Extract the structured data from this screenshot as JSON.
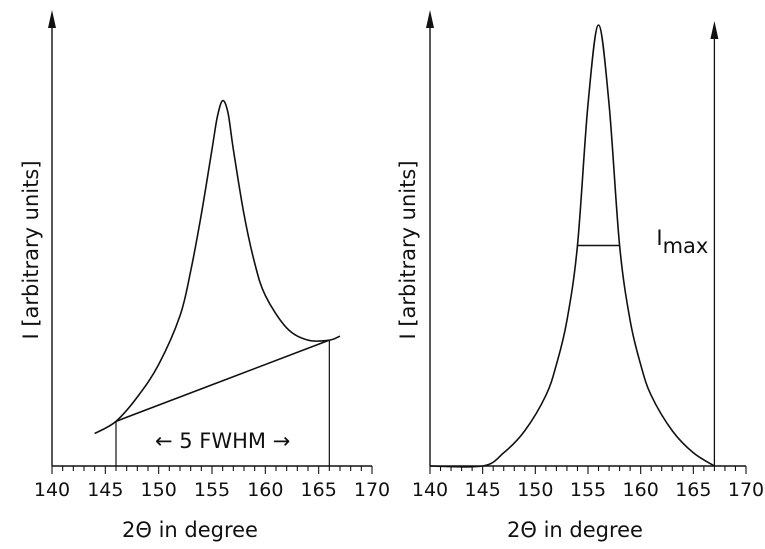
{
  "chart_data": [
    {
      "type": "line",
      "panel": "left",
      "xlabel": "2Θ  in degree",
      "ylabel": "I [arbitrary units]",
      "xlim": [
        140,
        170
      ],
      "xticks": [
        140,
        145,
        150,
        155,
        160,
        165,
        170
      ],
      "annotation": "← 5 FWHM →",
      "annotation_range": [
        146,
        166
      ],
      "series": [
        {
          "kind": "peak",
          "x": [
            144,
            146,
            148,
            150,
            152,
            153,
            154,
            155,
            155.5,
            156,
            156.5,
            157,
            158,
            159,
            160,
            162,
            164,
            166,
            167
          ],
          "y": [
            0.08,
            0.11,
            0.17,
            0.25,
            0.37,
            0.48,
            0.62,
            0.78,
            0.86,
            0.9,
            0.87,
            0.78,
            0.62,
            0.5,
            0.42,
            0.34,
            0.31,
            0.31,
            0.32
          ]
        },
        {
          "kind": "background",
          "x": [
            146,
            166
          ],
          "y": [
            0.11,
            0.31
          ]
        }
      ]
    },
    {
      "type": "line",
      "panel": "right",
      "xlabel": "2Θ in degree",
      "ylabel": "I [arbitrary units]",
      "xlim": [
        140,
        170
      ],
      "xticks": [
        140,
        145,
        150,
        155,
        160,
        165,
        170
      ],
      "annotation": "I",
      "annotation_sub": "max",
      "fwhm_range": [
        154,
        158
      ],
      "fwhm_level": 0.5,
      "series": [
        {
          "kind": "peak",
          "x": [
            140,
            145,
            147,
            149,
            151,
            152,
            153,
            154,
            155,
            156,
            157,
            158,
            159,
            160,
            161,
            163,
            165,
            167
          ],
          "y": [
            0.0,
            0.0,
            0.03,
            0.08,
            0.16,
            0.23,
            0.33,
            0.5,
            0.82,
            1.0,
            0.82,
            0.5,
            0.33,
            0.23,
            0.16,
            0.08,
            0.03,
            0.0
          ]
        }
      ]
    }
  ]
}
